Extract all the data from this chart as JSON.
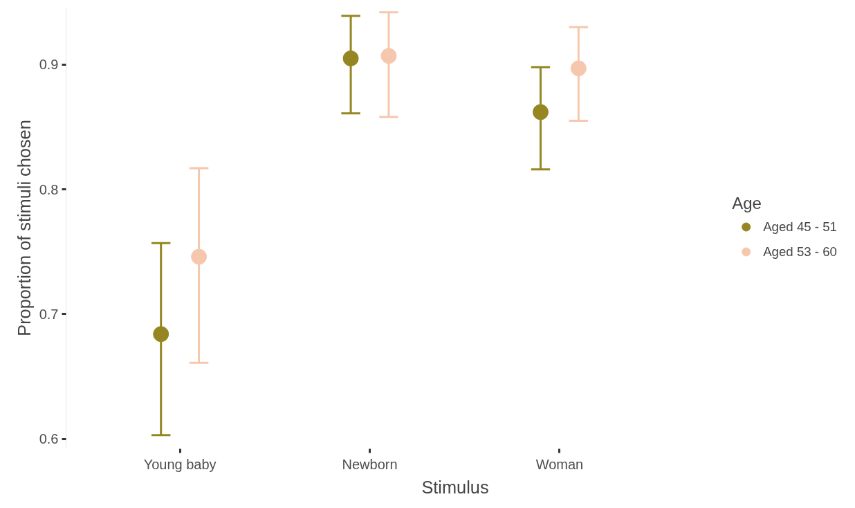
{
  "chart_data": {
    "type": "scatter",
    "xlabel": "Stimulus",
    "ylabel": "Proportion of stimuli chosen",
    "legend_title": "Age",
    "categories": [
      "Young baby",
      "Newborn",
      "Woman"
    ],
    "series": [
      {
        "name": "Aged 45 - 51",
        "color": "#958623",
        "values": [
          0.684,
          0.905,
          0.862
        ],
        "errors": [
          [
            0.603,
            0.757
          ],
          [
            0.861,
            0.939
          ],
          [
            0.816,
            0.898
          ]
        ]
      },
      {
        "name": "Aged 53 - 60",
        "color": "#f5c8ae",
        "values": [
          0.746,
          0.907,
          0.897
        ],
        "errors": [
          [
            0.661,
            0.817
          ],
          [
            0.858,
            0.942
          ],
          [
            0.855,
            0.93
          ]
        ]
      }
    ],
    "ylim": [
      0.592,
      0.946
    ],
    "yticks": [
      0.6,
      0.7,
      0.8,
      0.9
    ],
    "grid": false,
    "legend": "right",
    "marker": "circle"
  }
}
